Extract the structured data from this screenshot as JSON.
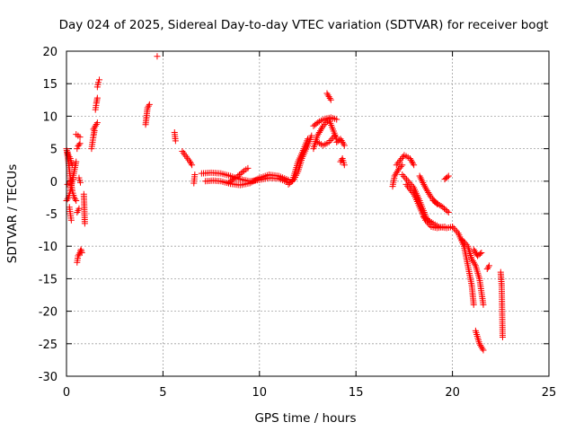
{
  "chart_data": {
    "type": "scatter",
    "title": "Day 024 of 2025, Sidereal Day-to-day VTEC variation (SDTVAR) for receiver bogt",
    "xlabel": "GPS time / hours",
    "ylabel": "SDTVAR / TECUs",
    "xlim": [
      0,
      25
    ],
    "ylim": [
      -30,
      20
    ],
    "xticks": [
      0,
      5,
      10,
      15,
      20,
      25
    ],
    "yticks": [
      -30,
      -25,
      -20,
      -15,
      -10,
      -5,
      0,
      5,
      10,
      15,
      20
    ],
    "grid": true,
    "marker": "+",
    "marker_color": "#ff0000",
    "series": [
      {
        "name": "sdtvar",
        "segments": [
          [
            [
              0.0,
              5.0
            ],
            [
              0.1,
              3.0
            ],
            [
              0.2,
              0.5
            ],
            [
              0.3,
              -1.5
            ],
            [
              0.4,
              -2.5
            ],
            [
              0.5,
              -3.0
            ]
          ],
          [
            [
              0.0,
              -3.0
            ],
            [
              0.1,
              -2.5
            ],
            [
              0.2,
              -1.5
            ],
            [
              0.3,
              0.0
            ],
            [
              0.4,
              1.5
            ],
            [
              0.5,
              3.0
            ]
          ],
          [
            [
              0.05,
              4.5
            ],
            [
              0.1,
              4.0
            ],
            [
              0.2,
              3.5
            ],
            [
              0.3,
              2.5
            ]
          ],
          [
            [
              0.05,
              -0.5
            ],
            [
              0.15,
              -0.3
            ],
            [
              0.25,
              0.0
            ],
            [
              0.35,
              0.3
            ]
          ],
          [
            [
              0.15,
              -4.0
            ],
            [
              0.2,
              -5.0
            ],
            [
              0.25,
              -6.0
            ]
          ],
          [
            [
              0.55,
              -12.5
            ],
            [
              0.6,
              -11.5
            ],
            [
              0.7,
              -11.0
            ],
            [
              0.75,
              -10.5
            ],
            [
              0.8,
              -11.0
            ]
          ],
          [
            [
              0.55,
              -4.8
            ],
            [
              0.6,
              -4.5
            ],
            [
              0.65,
              -4.2
            ]
          ],
          [
            [
              0.5,
              7.2
            ],
            [
              0.6,
              7.0
            ],
            [
              0.7,
              6.8
            ]
          ],
          [
            [
              0.55,
              5.0
            ],
            [
              0.6,
              5.4
            ],
            [
              0.7,
              5.8
            ]
          ],
          [
            [
              0.65,
              0.5
            ],
            [
              0.72,
              -0.2
            ]
          ],
          [
            [
              0.9,
              -2.0
            ],
            [
              0.95,
              -6.5
            ]
          ],
          [
            [
              1.3,
              5.0
            ],
            [
              1.35,
              6.0
            ],
            [
              1.4,
              7.0
            ],
            [
              1.45,
              7.8
            ]
          ],
          [
            [
              1.4,
              8.0
            ],
            [
              1.5,
              8.5
            ],
            [
              1.6,
              9.0
            ]
          ],
          [
            [
              1.5,
              11.0
            ],
            [
              1.55,
              12.0
            ],
            [
              1.6,
              12.8
            ]
          ],
          [
            [
              1.6,
              14.5
            ],
            [
              1.65,
              15.2
            ],
            [
              1.7,
              15.6
            ]
          ],
          [
            [
              4.1,
              8.7
            ],
            [
              4.2,
              11.3
            ],
            [
              4.3,
              11.8
            ]
          ],
          [
            [
              4.7,
              19.2
            ]
          ],
          [
            [
              5.6,
              7.5
            ],
            [
              5.65,
              6.2
            ]
          ],
          [
            [
              6.0,
              4.6
            ],
            [
              6.2,
              3.8
            ],
            [
              6.4,
              3.0
            ],
            [
              6.5,
              2.5
            ]
          ],
          [
            [
              6.6,
              -0.3
            ],
            [
              6.65,
              1.0
            ]
          ],
          [
            [
              7.0,
              1.2
            ],
            [
              7.5,
              1.3
            ],
            [
              8.0,
              1.2
            ],
            [
              8.5,
              0.8
            ],
            [
              9.0,
              0.3
            ],
            [
              9.5,
              0.0
            ],
            [
              10.0,
              0.2
            ],
            [
              10.5,
              0.5
            ],
            [
              11.0,
              0.4
            ],
            [
              11.5,
              -0.2
            ]
          ],
          [
            [
              7.2,
              0.0
            ],
            [
              7.6,
              0.1
            ],
            [
              8.0,
              0.0
            ],
            [
              8.5,
              -0.4
            ],
            [
              9.0,
              -0.6
            ],
            [
              9.5,
              -0.3
            ],
            [
              10.0,
              0.5
            ],
            [
              10.5,
              1.0
            ],
            [
              11.0,
              0.8
            ],
            [
              11.5,
              0.2
            ]
          ],
          [
            [
              8.4,
              -0.2
            ],
            [
              8.8,
              0.6
            ],
            [
              9.2,
              1.6
            ],
            [
              9.4,
              2.0
            ]
          ],
          [
            [
              11.5,
              -0.5
            ],
            [
              11.8,
              0.3
            ],
            [
              12.0,
              1.5
            ],
            [
              12.2,
              3.5
            ],
            [
              12.5,
              5.5
            ],
            [
              12.7,
              7.0
            ]
          ],
          [
            [
              11.7,
              0.0
            ],
            [
              12.0,
              3.0
            ],
            [
              12.3,
              5.0
            ],
            [
              12.5,
              6.5
            ]
          ],
          [
            [
              12.8,
              5.0
            ],
            [
              13.0,
              7.0
            ],
            [
              13.3,
              8.5
            ],
            [
              13.6,
              9.5
            ],
            [
              13.8,
              8.0
            ],
            [
              14.0,
              6.5
            ]
          ],
          [
            [
              12.8,
              8.5
            ],
            [
              13.1,
              9.2
            ],
            [
              13.4,
              9.6
            ],
            [
              13.7,
              9.8
            ],
            [
              14.0,
              9.5
            ]
          ],
          [
            [
              13.0,
              6.0
            ],
            [
              13.3,
              5.5
            ],
            [
              13.6,
              6.0
            ],
            [
              13.9,
              7.0
            ]
          ],
          [
            [
              13.5,
              13.5
            ],
            [
              13.6,
              13.0
            ],
            [
              13.7,
              12.5
            ]
          ],
          [
            [
              14.0,
              6.0
            ],
            [
              14.2,
              6.5
            ],
            [
              14.4,
              5.5
            ]
          ],
          [
            [
              14.2,
              3.0
            ],
            [
              14.3,
              3.5
            ],
            [
              14.4,
              2.5
            ]
          ],
          [
            [
              16.9,
              -0.8
            ],
            [
              17.0,
              0.8
            ],
            [
              17.2,
              1.8
            ],
            [
              17.4,
              2.5
            ]
          ],
          [
            [
              17.1,
              2.5
            ],
            [
              17.5,
              4.0
            ],
            [
              17.8,
              3.5
            ],
            [
              18.0,
              2.5
            ]
          ],
          [
            [
              17.4,
              1.0
            ],
            [
              17.7,
              0.0
            ],
            [
              18.0,
              -1.0
            ],
            [
              18.3,
              -3.0
            ],
            [
              18.5,
              -4.5
            ],
            [
              18.7,
              -6.0
            ]
          ],
          [
            [
              17.6,
              -0.5
            ],
            [
              18.0,
              -2.0
            ],
            [
              18.3,
              -4.0
            ],
            [
              18.6,
              -6.0
            ],
            [
              18.9,
              -7.0
            ],
            [
              19.2,
              -7.2
            ],
            [
              19.6,
              -7.0
            ]
          ],
          [
            [
              18.3,
              0.8
            ],
            [
              18.6,
              -1.0
            ],
            [
              18.9,
              -2.5
            ],
            [
              19.2,
              -3.5
            ]
          ],
          [
            [
              18.5,
              -5.5
            ],
            [
              19.0,
              -6.5
            ],
            [
              19.3,
              -7.0
            ],
            [
              19.7,
              -7.2
            ],
            [
              20.0,
              -7.0
            ]
          ],
          [
            [
              19.0,
              -3.0
            ],
            [
              19.5,
              -4.0
            ],
            [
              19.8,
              -4.8
            ]
          ],
          [
            [
              19.6,
              0.3
            ],
            [
              19.8,
              0.8
            ]
          ],
          [
            [
              20.0,
              -7.0
            ],
            [
              20.3,
              -8.0
            ],
            [
              20.6,
              -10.0
            ],
            [
              20.8,
              -13.0
            ],
            [
              21.0,
              -16.0
            ],
            [
              21.1,
              -19.0
            ]
          ],
          [
            [
              20.5,
              -9.0
            ],
            [
              20.8,
              -10.0
            ],
            [
              21.0,
              -12.0
            ],
            [
              21.2,
              -13.0
            ],
            [
              21.4,
              -15.0
            ],
            [
              21.6,
              -19.0
            ]
          ],
          [
            [
              21.1,
              -10.5
            ],
            [
              21.3,
              -11.5
            ],
            [
              21.5,
              -11.0
            ]
          ],
          [
            [
              21.2,
              -23.0
            ],
            [
              21.4,
              -25.0
            ],
            [
              21.6,
              -26.0
            ]
          ],
          [
            [
              21.8,
              -13.5
            ],
            [
              21.9,
              -13.0
            ]
          ],
          [
            [
              22.5,
              -14.0
            ],
            [
              22.55,
              -16.0
            ],
            [
              22.6,
              -24.0
            ]
          ]
        ]
      }
    ]
  }
}
